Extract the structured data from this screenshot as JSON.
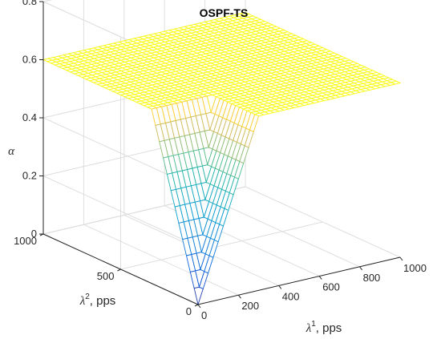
{
  "chart_data": {
    "type": "surface",
    "title": "OSPF-TS",
    "xlabel": {
      "symbol": "λ",
      "sup": "1",
      "unit": ", pps"
    },
    "ylabel": {
      "symbol": "λ",
      "sup": "2",
      "unit": ", pps"
    },
    "zlabel": "α",
    "x_ticks": [
      "0",
      "200",
      "400",
      "600",
      "800",
      "1000"
    ],
    "y_ticks": [
      "0",
      "500",
      "1000"
    ],
    "z_ticks": [
      "0",
      "0.2",
      "0.4",
      "0.6",
      "0.8"
    ],
    "xlim": [
      0,
      1000
    ],
    "ylim": [
      0,
      1000
    ],
    "zlim": [
      0,
      0.8
    ],
    "grid": true,
    "colormap": "parula",
    "surface": {
      "x_range": [
        0,
        1000
      ],
      "y_range": [
        0,
        1000
      ],
      "plateau_alpha": 0.6,
      "minimum_alpha": 0,
      "minimum_at": [
        0,
        0
      ]
    }
  }
}
